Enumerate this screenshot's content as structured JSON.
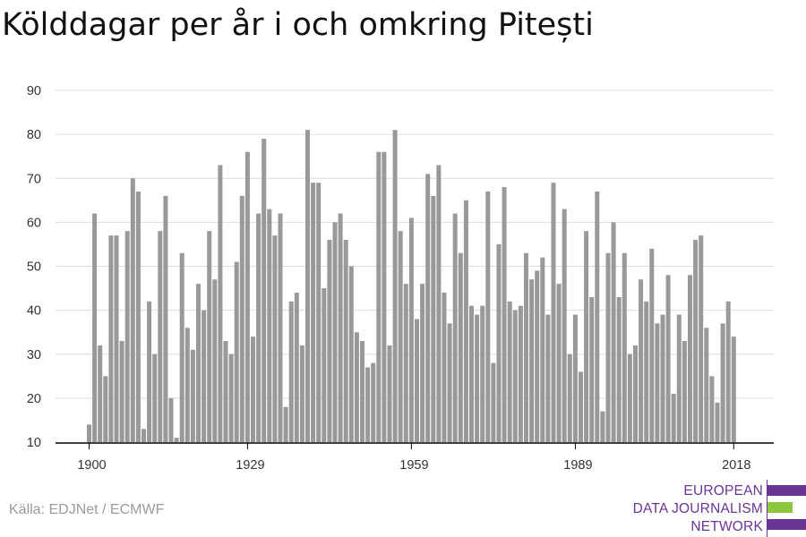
{
  "title": "Kölddagar per år i och omkring Pitești",
  "source": "Källa: EDJNet / ECMWF",
  "logo": {
    "lines": [
      "EUROPEAN",
      "DATA JOURNALISM",
      "NETWORK"
    ],
    "colors": {
      "purple": "#6a3594",
      "green": "#8dc63f"
    }
  },
  "colors": {
    "bar": "#999999",
    "grid": "#dddddd",
    "axis": "#000000",
    "tick_label": "#333333"
  },
  "chart_data": {
    "type": "bar",
    "title": "Kölddagar per år i och omkring Pitești",
    "xlabel": "",
    "ylabel": "",
    "ylim": [
      10,
      90
    ],
    "yticks": [
      10,
      20,
      30,
      40,
      50,
      60,
      70,
      80,
      90
    ],
    "xticks": [
      1900,
      1929,
      1959,
      1989,
      2018
    ],
    "grid": true,
    "x_start": 1900,
    "values": [
      14,
      62,
      32,
      25,
      57,
      57,
      33,
      58,
      70,
      67,
      13,
      42,
      30,
      58,
      66,
      20,
      11,
      53,
      36,
      31,
      46,
      40,
      58,
      47,
      73,
      33,
      30,
      51,
      66,
      76,
      34,
      62,
      79,
      63,
      57,
      62,
      18,
      42,
      44,
      32,
      81,
      69,
      69,
      45,
      56,
      60,
      62,
      56,
      50,
      35,
      33,
      27,
      28,
      76,
      76,
      32,
      81,
      58,
      46,
      61,
      38,
      46,
      71,
      66,
      73,
      44,
      37,
      62,
      53,
      65,
      41,
      39,
      41,
      67,
      28,
      55,
      68,
      42,
      40,
      41,
      53,
      47,
      49,
      52,
      39,
      69,
      46,
      63,
      30,
      39,
      26,
      58,
      43,
      67,
      17,
      53,
      60,
      43,
      53,
      30,
      32,
      47,
      42,
      54,
      37,
      39,
      48,
      21,
      39,
      33,
      48,
      56,
      57,
      36,
      25,
      19,
      37,
      42,
      34
    ]
  }
}
